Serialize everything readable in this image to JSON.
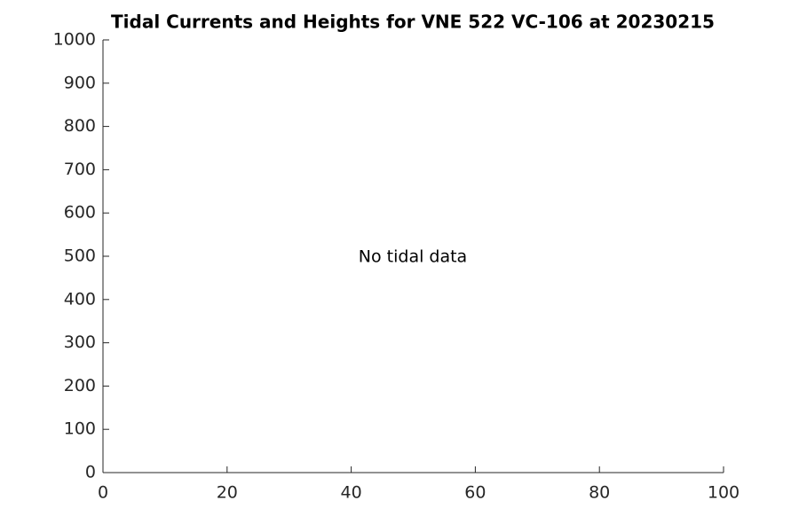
{
  "chart_data": {
    "type": "line",
    "title": "Tidal Currents and Heights for VNE 522 VC-106 at 20230215",
    "annotation": "No tidal data",
    "xlim": [
      0,
      100
    ],
    "xticks": [
      0,
      20,
      40,
      60,
      80,
      100
    ],
    "ylim": [
      0,
      1000
    ],
    "yticks": [
      0,
      100,
      200,
      300,
      400,
      500,
      600,
      700,
      800,
      900,
      1000
    ],
    "series": []
  }
}
